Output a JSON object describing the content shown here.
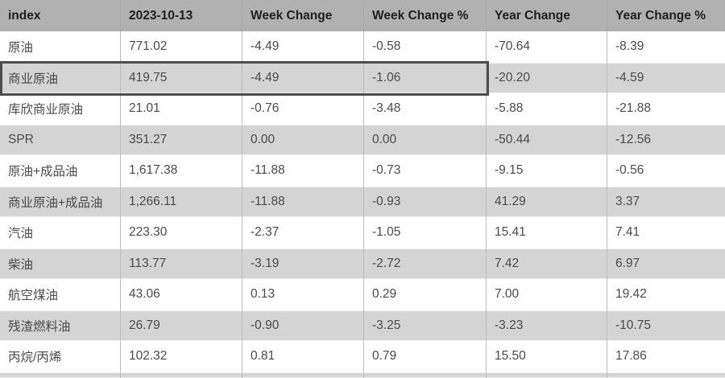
{
  "table": {
    "columns": [
      "index",
      "2023-10-13",
      "Week Change",
      "Week Change %",
      "Year Change",
      "Year Change %"
    ],
    "rows": [
      {
        "cells": [
          "原油",
          "771.02",
          "-4.49",
          "-0.58",
          "-70.64",
          "-8.39"
        ],
        "highlighted": false
      },
      {
        "cells": [
          "商业原油",
          "419.75",
          "-4.49",
          "-1.06",
          "-20.20",
          "-4.59"
        ],
        "highlighted": true
      },
      {
        "cells": [
          "库欣商业原油",
          "21.01",
          "-0.76",
          "-3.48",
          "-5.88",
          "-21.88"
        ],
        "highlighted": false
      },
      {
        "cells": [
          "SPR",
          "351.27",
          "0.00",
          "0.00",
          "-50.44",
          "-12.56"
        ],
        "highlighted": false
      },
      {
        "cells": [
          "原油+成品油",
          "1,617.38",
          "-11.88",
          "-0.73",
          "-9.15",
          "-0.56"
        ],
        "highlighted": false
      },
      {
        "cells": [
          "商业原油+成品油",
          "1,266.11",
          "-11.88",
          "-0.93",
          "41.29",
          "3.37"
        ],
        "highlighted": false
      },
      {
        "cells": [
          "汽油",
          "223.30",
          "-2.37",
          "-1.05",
          "15.41",
          "7.41"
        ],
        "highlighted": false
      },
      {
        "cells": [
          "柴油",
          "113.77",
          "-3.19",
          "-2.72",
          "7.42",
          "6.97"
        ],
        "highlighted": false
      },
      {
        "cells": [
          "航空煤油",
          "43.06",
          "0.13",
          "0.29",
          "7.00",
          "19.42"
        ],
        "highlighted": false
      },
      {
        "cells": [
          "残渣燃料油",
          "26.79",
          "-0.90",
          "-3.25",
          "-3.23",
          "-10.75"
        ],
        "highlighted": false
      },
      {
        "cells": [
          "丙烷/丙烯",
          "102.32",
          "0.81",
          "0.79",
          "15.50",
          "17.86"
        ],
        "highlighted": false
      }
    ],
    "highlight": {
      "row_label": "商业原油",
      "columns_spanned": 4
    }
  },
  "colors": {
    "header_bg": "#b1b1b1",
    "header_text": "#1f1f1f",
    "row_bg": "#ffffff",
    "row_alt_bg": "#d4d4d4",
    "text": "#4a4a4a",
    "highlight_border": "#4d4d4d"
  }
}
